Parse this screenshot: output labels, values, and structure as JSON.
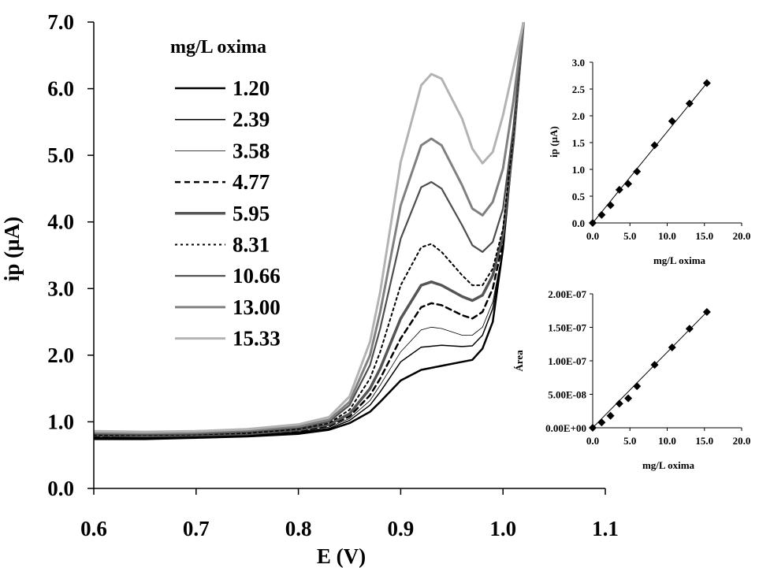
{
  "chart_data": [
    {
      "type": "line",
      "title": "",
      "xlabel": "E (V)",
      "ylabel": "ip (µA)",
      "xlim": [
        0.6,
        1.1
      ],
      "ylim": [
        0.0,
        7.0
      ],
      "xticks": [
        "0.6",
        "0.7",
        "0.8",
        "0.9",
        "1.0",
        "1.1"
      ],
      "yticks": [
        "0.0",
        "1.0",
        "2.0",
        "3.0",
        "4.0",
        "5.0",
        "6.0",
        "7.0"
      ],
      "grid": false,
      "legend": {
        "title": "mg/L oxima",
        "placement": "top-left",
        "entries": [
          "1.20",
          "2.39",
          "3.58",
          "4.77",
          "5.95",
          "8.31",
          "10.66",
          "13.00",
          "15.33"
        ]
      },
      "series": [
        {
          "name": "1.20",
          "color": "#000000",
          "style": "solid",
          "width": 2.5,
          "x": [
            0.6,
            0.65,
            0.7,
            0.75,
            0.8,
            0.83,
            0.85,
            0.87,
            0.88,
            0.9,
            0.92,
            0.94,
            0.96,
            0.97,
            0.98,
            0.99,
            1.0,
            1.01,
            1.02
          ],
          "y": [
            0.74,
            0.74,
            0.76,
            0.78,
            0.82,
            0.88,
            0.98,
            1.15,
            1.3,
            1.62,
            1.78,
            1.84,
            1.9,
            1.93,
            2.1,
            2.5,
            3.6,
            5.2,
            7.0
          ]
        },
        {
          "name": "2.39",
          "color": "#000000",
          "style": "solid",
          "width": 1.5,
          "x": [
            0.6,
            0.65,
            0.7,
            0.75,
            0.8,
            0.83,
            0.85,
            0.87,
            0.88,
            0.9,
            0.92,
            0.94,
            0.96,
            0.97,
            0.98,
            0.99,
            1.0,
            1.01,
            1.02
          ],
          "y": [
            0.76,
            0.76,
            0.77,
            0.79,
            0.84,
            0.9,
            1.02,
            1.25,
            1.45,
            1.9,
            2.12,
            2.15,
            2.13,
            2.14,
            2.3,
            2.7,
            3.6,
            5.2,
            7.0
          ]
        },
        {
          "name": "3.58",
          "color": "#000000",
          "style": "solid",
          "width": 0.8,
          "x": [
            0.6,
            0.65,
            0.7,
            0.75,
            0.8,
            0.83,
            0.85,
            0.87,
            0.88,
            0.9,
            0.92,
            0.93,
            0.94,
            0.96,
            0.97,
            0.98,
            0.99,
            1.0,
            1.01,
            1.02
          ],
          "y": [
            0.77,
            0.77,
            0.78,
            0.8,
            0.85,
            0.92,
            1.05,
            1.32,
            1.55,
            2.05,
            2.38,
            2.42,
            2.4,
            2.3,
            2.3,
            2.42,
            2.8,
            3.6,
            5.2,
            7.0
          ]
        },
        {
          "name": "4.77",
          "color": "#000000",
          "style": "dashed",
          "width": 2.5,
          "x": [
            0.6,
            0.65,
            0.7,
            0.75,
            0.8,
            0.83,
            0.85,
            0.87,
            0.88,
            0.9,
            0.92,
            0.93,
            0.94,
            0.96,
            0.97,
            0.98,
            0.99,
            1.0,
            1.01,
            1.02
          ],
          "y": [
            0.78,
            0.78,
            0.79,
            0.81,
            0.86,
            0.94,
            1.08,
            1.4,
            1.65,
            2.25,
            2.72,
            2.78,
            2.75,
            2.6,
            2.55,
            2.65,
            3.0,
            3.7,
            5.2,
            7.0
          ]
        },
        {
          "name": "5.95",
          "color": "#555555",
          "style": "solid",
          "width": 3.5,
          "x": [
            0.6,
            0.65,
            0.7,
            0.75,
            0.8,
            0.83,
            0.85,
            0.87,
            0.88,
            0.9,
            0.92,
            0.93,
            0.94,
            0.96,
            0.97,
            0.98,
            0.99,
            1.0,
            1.01,
            1.02
          ],
          "y": [
            0.8,
            0.79,
            0.8,
            0.82,
            0.88,
            0.96,
            1.12,
            1.5,
            1.8,
            2.55,
            3.05,
            3.1,
            3.05,
            2.88,
            2.82,
            2.9,
            3.2,
            3.8,
            5.2,
            7.0
          ]
        },
        {
          "name": "8.31",
          "color": "#000000",
          "style": "dotted",
          "width": 2,
          "x": [
            0.6,
            0.65,
            0.7,
            0.75,
            0.8,
            0.83,
            0.85,
            0.87,
            0.88,
            0.9,
            0.92,
            0.93,
            0.94,
            0.96,
            0.97,
            0.98,
            0.99,
            1.0,
            1.01,
            1.02
          ],
          "y": [
            0.8,
            0.8,
            0.81,
            0.83,
            0.89,
            0.98,
            1.18,
            1.65,
            2.05,
            3.05,
            3.62,
            3.67,
            3.55,
            3.2,
            3.05,
            3.05,
            3.3,
            3.9,
            5.3,
            7.0
          ]
        },
        {
          "name": "10.66",
          "color": "#4d4d4d",
          "style": "solid",
          "width": 2.2,
          "x": [
            0.6,
            0.65,
            0.7,
            0.75,
            0.8,
            0.83,
            0.85,
            0.87,
            0.88,
            0.9,
            0.92,
            0.93,
            0.94,
            0.96,
            0.97,
            0.98,
            0.99,
            1.0,
            1.01,
            1.02
          ],
          "y": [
            0.82,
            0.81,
            0.82,
            0.85,
            0.91,
            1.0,
            1.25,
            1.85,
            2.4,
            3.75,
            4.52,
            4.6,
            4.5,
            3.95,
            3.65,
            3.55,
            3.7,
            4.2,
            5.4,
            7.0
          ]
        },
        {
          "name": "13.00",
          "color": "#808080",
          "style": "solid",
          "width": 3,
          "x": [
            0.6,
            0.65,
            0.7,
            0.75,
            0.8,
            0.83,
            0.85,
            0.87,
            0.88,
            0.9,
            0.92,
            0.93,
            0.94,
            0.96,
            0.97,
            0.98,
            0.99,
            1.0,
            1.01,
            1.02
          ],
          "y": [
            0.84,
            0.83,
            0.84,
            0.87,
            0.93,
            1.03,
            1.3,
            2.0,
            2.65,
            4.25,
            5.15,
            5.25,
            5.15,
            4.55,
            4.2,
            4.1,
            4.3,
            4.8,
            5.8,
            7.0
          ]
        },
        {
          "name": "15.33",
          "color": "#b3b3b3",
          "style": "solid",
          "width": 3,
          "x": [
            0.6,
            0.65,
            0.7,
            0.75,
            0.8,
            0.83,
            0.85,
            0.87,
            0.88,
            0.9,
            0.92,
            0.93,
            0.94,
            0.96,
            0.97,
            0.98,
            0.99,
            1.0,
            1.01,
            1.02
          ],
          "y": [
            0.86,
            0.85,
            0.86,
            0.89,
            0.96,
            1.07,
            1.38,
            2.2,
            2.95,
            4.9,
            6.05,
            6.22,
            6.15,
            5.55,
            5.1,
            4.88,
            5.05,
            5.6,
            6.3,
            7.0
          ]
        }
      ]
    },
    {
      "type": "scatter",
      "title": "",
      "xlabel": "mg/L oxima",
      "ylabel": "ip (µA)",
      "xlim": [
        0.0,
        20.0
      ],
      "ylim": [
        0.0,
        3.0
      ],
      "xticks": [
        "0.0",
        "5.0",
        "10.0",
        "15.0",
        "20.0"
      ],
      "yticks": [
        "0.0",
        "0.5",
        "1.0",
        "1.5",
        "2.0",
        "2.5",
        "3.0"
      ],
      "trendline": true,
      "marker": "diamond",
      "x": [
        0.0,
        1.2,
        2.39,
        3.58,
        4.77,
        5.95,
        8.31,
        10.66,
        13.0,
        15.33
      ],
      "y": [
        0.0,
        0.15,
        0.33,
        0.62,
        0.73,
        0.96,
        1.45,
        1.9,
        2.23,
        2.61
      ]
    },
    {
      "type": "scatter",
      "title": "",
      "xlabel": "mg/L oxima",
      "ylabel": "Área",
      "xlim": [
        0.0,
        20.0
      ],
      "ylim": [
        0.0,
        2e-07
      ],
      "xticks": [
        "0.0",
        "5.0",
        "10.0",
        "15.0",
        "20.0"
      ],
      "yticks": [
        "0.00E+00",
        "5.00E-08",
        "1.00E-07",
        "1.50E-07",
        "2.00E-07"
      ],
      "trendline": true,
      "marker": "diamond",
      "x": [
        0.0,
        1.2,
        2.39,
        3.58,
        4.77,
        5.95,
        8.31,
        10.66,
        13.0,
        15.33
      ],
      "y": [
        0.0,
        8e-09,
        1.8e-08,
        3.6e-08,
        4.4e-08,
        6.2e-08,
        9.4e-08,
        1.2e-07,
        1.48e-07,
        1.73e-07
      ]
    }
  ]
}
